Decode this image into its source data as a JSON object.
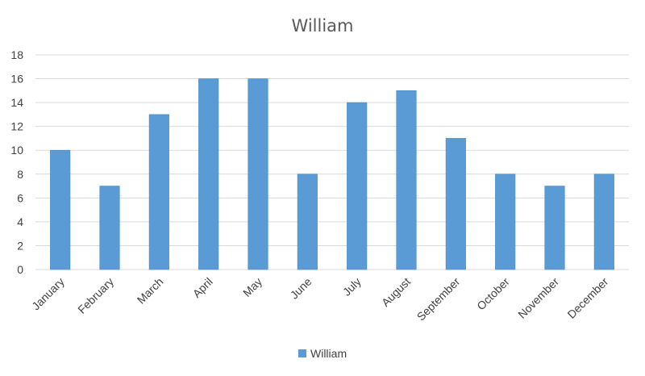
{
  "chart_data": {
    "type": "bar",
    "title": "William",
    "categories": [
      "January",
      "February",
      "March",
      "April",
      "May",
      "June",
      "July",
      "August",
      "September",
      "October",
      "November",
      "December"
    ],
    "series": [
      {
        "name": "William",
        "values": [
          10,
          7,
          13,
          16,
          16,
          8,
          14,
          15,
          11,
          8,
          7,
          8
        ],
        "color": "#5b9bd5"
      }
    ],
    "yticks": [
      0,
      2,
      4,
      6,
      8,
      10,
      12,
      14,
      16,
      18
    ],
    "ylim": [
      0,
      18
    ],
    "xlabel": "",
    "ylabel": "",
    "grid": true,
    "legend": "bottom"
  }
}
